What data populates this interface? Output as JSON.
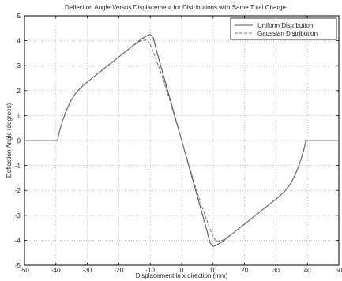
{
  "chart_data": {
    "type": "line",
    "title": "Deflection Angle Versus Displacement for Distributions with Same Total Charge",
    "xlabel": "Displacement in x direction (mm)",
    "ylabel": "Deflection Angle (degrees)",
    "xlim": [
      -50,
      50
    ],
    "ylim": [
      -5,
      5
    ],
    "xticks": [
      -50,
      -40,
      -30,
      -20,
      -10,
      0,
      10,
      20,
      30,
      40,
      50
    ],
    "yticks": [
      -5,
      -4,
      -3,
      -2,
      -1,
      0,
      1,
      2,
      3,
      4,
      5
    ],
    "grid": true,
    "legend_position": "top-right",
    "series": [
      {
        "name": "Uniform Distribution",
        "color": "#555555",
        "dash": "solid",
        "x": [
          -50,
          -39.5,
          -39,
          -38,
          -37,
          -36,
          -35,
          -34,
          -33,
          -31,
          -28,
          -25,
          -22,
          -19,
          -16,
          -13,
          -11,
          -10,
          -9,
          -8,
          -6,
          -4,
          -2,
          0,
          2,
          4,
          6,
          8,
          9,
          10,
          11,
          13,
          16,
          19,
          22,
          25,
          28,
          31,
          33,
          34,
          35,
          36,
          37,
          38,
          39,
          39.5,
          50
        ],
        "y": [
          0,
          0,
          0.3,
          0.75,
          1.1,
          1.4,
          1.65,
          1.85,
          2.0,
          2.25,
          2.55,
          2.85,
          3.15,
          3.45,
          3.75,
          4.05,
          4.2,
          4.25,
          4.1,
          3.6,
          2.7,
          1.8,
          0.9,
          0,
          -0.9,
          -1.8,
          -2.7,
          -3.6,
          -4.1,
          -4.25,
          -4.2,
          -4.05,
          -3.75,
          -3.45,
          -3.15,
          -2.85,
          -2.55,
          -2.25,
          -2.0,
          -1.85,
          -1.65,
          -1.4,
          -1.1,
          -0.75,
          -0.3,
          0,
          0
        ]
      },
      {
        "name": "Gaussian Distribution",
        "color": "#7a7a7a",
        "dash": "dashed",
        "x": [
          -50,
          -39.5,
          -39,
          -38,
          -37,
          -36,
          -35,
          -34,
          -33,
          -31,
          -28,
          -25,
          -22,
          -19,
          -16,
          -13,
          -11,
          -10,
          -9,
          -8,
          -6,
          -4,
          -2,
          0,
          2,
          4,
          6,
          8,
          9,
          10,
          11,
          13,
          16,
          19,
          22,
          25,
          28,
          31,
          33,
          34,
          35,
          36,
          37,
          38,
          39,
          39.5,
          50
        ],
        "y": [
          0,
          0,
          0.3,
          0.75,
          1.1,
          1.4,
          1.65,
          1.85,
          2.0,
          2.25,
          2.55,
          2.85,
          3.15,
          3.45,
          3.75,
          4.0,
          4.05,
          3.85,
          3.55,
          3.2,
          2.5,
          1.7,
          0.85,
          0,
          -0.85,
          -1.7,
          -2.5,
          -3.2,
          -3.55,
          -3.85,
          -4.05,
          -4.0,
          -3.75,
          -3.45,
          -3.15,
          -2.85,
          -2.55,
          -2.25,
          -2.0,
          -1.85,
          -1.65,
          -1.4,
          -1.1,
          -0.75,
          -0.3,
          0,
          0
        ]
      }
    ]
  }
}
